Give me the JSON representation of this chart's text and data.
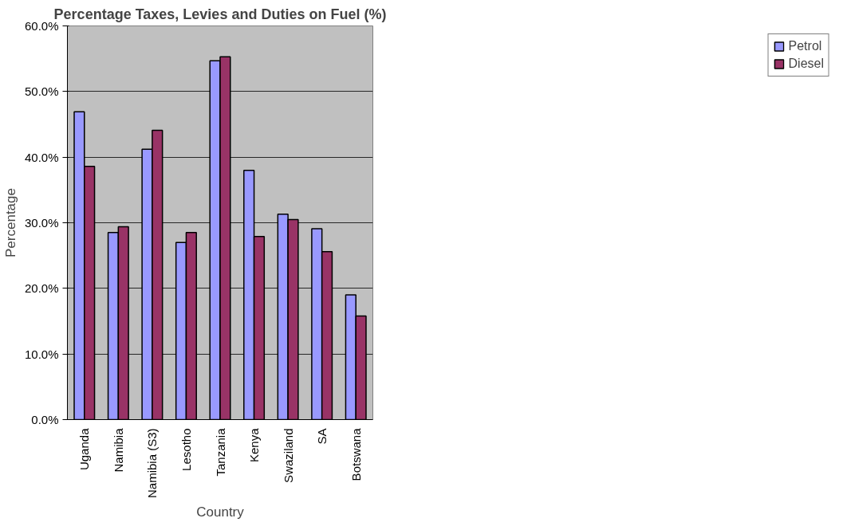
{
  "chart_data": {
    "type": "bar",
    "title": "Percentage Taxes, Levies and Duties on Fuel (%)",
    "xlabel": "Country",
    "ylabel": "Percentage",
    "categories": [
      "Uganda",
      "Namibia",
      "Namibia (S3)",
      "Lesotho",
      "Tanzania",
      "Kenya",
      "Swaziland",
      "SA",
      "Botswana"
    ],
    "series": [
      {
        "name": "Petrol",
        "color": "#9999ff",
        "values": [
          46.9,
          28.5,
          41.2,
          27.0,
          54.7,
          38.0,
          31.3,
          29.1,
          19.0
        ]
      },
      {
        "name": "Diesel",
        "color": "#993366",
        "values": [
          38.6,
          29.4,
          44.1,
          28.5,
          55.3,
          27.9,
          30.5,
          25.6,
          15.8
        ]
      }
    ],
    "ylim": [
      0,
      60
    ],
    "yticks": [
      {
        "value": 0,
        "label": "0.0%"
      },
      {
        "value": 10,
        "label": "10.0%"
      },
      {
        "value": 20,
        "label": "20.0%"
      },
      {
        "value": 30,
        "label": "30.0%"
      },
      {
        "value": 40,
        "label": "40.0%"
      },
      {
        "value": 50,
        "label": "50.0%"
      },
      {
        "value": 60,
        "label": "60.0%"
      }
    ],
    "grid": "y",
    "legend": "right"
  }
}
